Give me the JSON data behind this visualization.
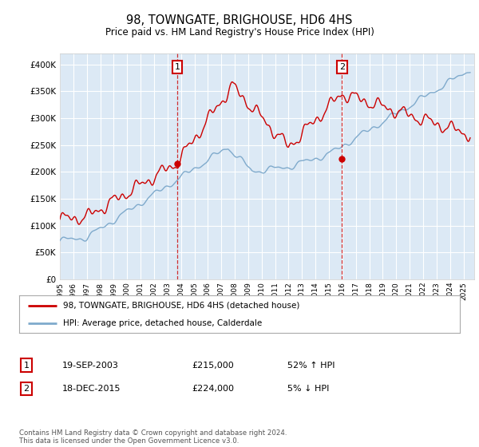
{
  "title": "98, TOWNGATE, BRIGHOUSE, HD6 4HS",
  "subtitle": "Price paid vs. HM Land Registry's House Price Index (HPI)",
  "ylim": [
    0,
    420000
  ],
  "xlim_start": 1995.0,
  "xlim_end": 2025.8,
  "bg_color": "#dce9f5",
  "plot_bg": "#dce9f5",
  "red_line_color": "#cc0000",
  "blue_line_color": "#7faacc",
  "marker_color": "#cc0000",
  "vline_color": "#cc0000",
  "purchase1_x": 2003.72,
  "purchase1_y": 215000,
  "purchase2_x": 2015.96,
  "purchase2_y": 224000,
  "legend_label1": "98, TOWNGATE, BRIGHOUSE, HD6 4HS (detached house)",
  "legend_label2": "HPI: Average price, detached house, Calderdale",
  "table_row1": [
    "1",
    "19-SEP-2003",
    "£215,000",
    "52% ↑ HPI"
  ],
  "table_row2": [
    "2",
    "18-DEC-2015",
    "£224,000",
    "5% ↓ HPI"
  ],
  "footnote": "Contains HM Land Registry data © Crown copyright and database right 2024.\nThis data is licensed under the Open Government Licence v3.0."
}
